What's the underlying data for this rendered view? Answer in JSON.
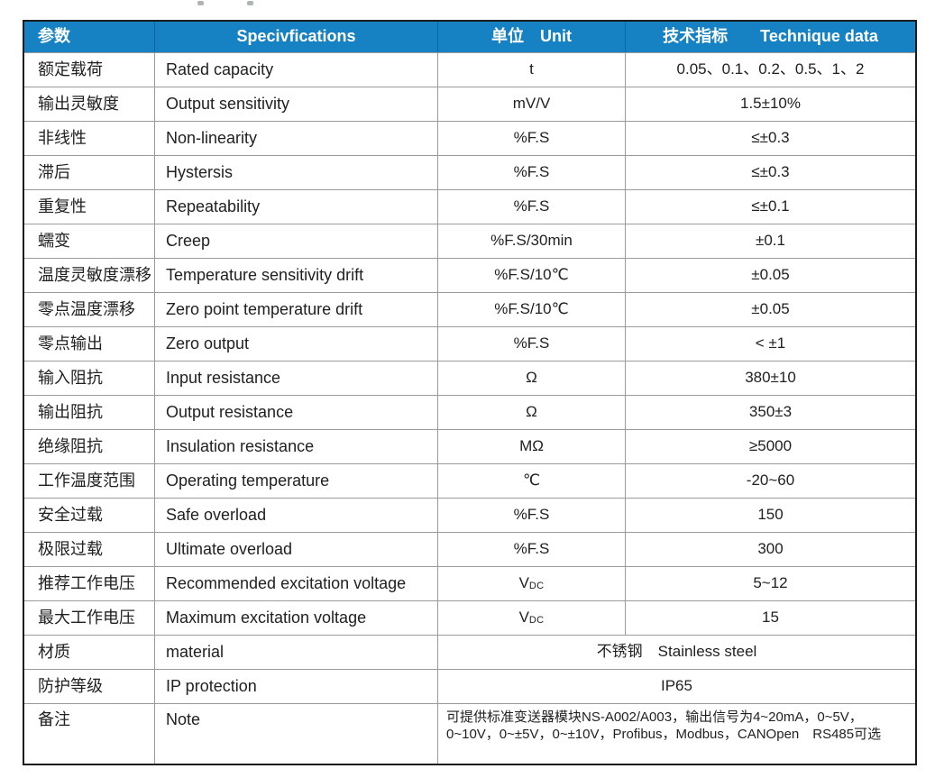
{
  "table": {
    "headers": {
      "param": "参数",
      "spec": "Specivfications",
      "unit": "单位　Unit",
      "data": "技术指标　　Technique data"
    },
    "rows": [
      {
        "zh": "额定载荷",
        "en": "Rated capacity",
        "unit": "t",
        "value": "0.05、0.1、0.2、0.5、1、2"
      },
      {
        "zh": "输出灵敏度",
        "en": "Output sensitivity",
        "unit": "mV/V",
        "value": "1.5±10%"
      },
      {
        "zh": "非线性",
        "en": "Non-linearity",
        "unit": "%F.S",
        "value": "≤±0.3"
      },
      {
        "zh": "滞后",
        "en": "Hystersis",
        "unit": "%F.S",
        "value": "≤±0.3"
      },
      {
        "zh": "重复性",
        "en": "Repeatability",
        "unit": "%F.S",
        "value": "≤±0.1"
      },
      {
        "zh": "蠕变",
        "en": "Creep",
        "unit": "%F.S/30min",
        "value": "±0.1"
      },
      {
        "zh": "温度灵敏度漂移",
        "en": "Temperature sensitivity drift",
        "unit": "%F.S/10℃",
        "value": "±0.05"
      },
      {
        "zh": "零点温度漂移",
        "en": "Zero point temperature drift",
        "unit": "%F.S/10℃",
        "value": "±0.05"
      },
      {
        "zh": "零点输出",
        "en": "Zero output",
        "unit": "%F.S",
        "value": "< ±1"
      },
      {
        "zh": "输入阻抗",
        "en": "Input resistance",
        "unit": "Ω",
        "value": "380±10"
      },
      {
        "zh": "输出阻抗",
        "en": "Output resistance",
        "unit": "Ω",
        "value": "350±3"
      },
      {
        "zh": "绝缘阻抗",
        "en": "Insulation resistance",
        "unit": "MΩ",
        "value": "≥5000"
      },
      {
        "zh": "工作温度范围",
        "en": "Operating temperature",
        "unit": "℃",
        "value": "-20~60"
      },
      {
        "zh": "安全过载",
        "en": "Safe overload",
        "unit": "%F.S",
        "value": "150"
      },
      {
        "zh": "极限过载",
        "en": "Ultimate overload",
        "unit": "%F.S",
        "value": "300"
      },
      {
        "zh": "推荐工作电压",
        "en": "Recommended excitation voltage",
        "unit": "VDC",
        "value": "5~12"
      },
      {
        "zh": "最大工作电压",
        "en": "Maximum excitation voltage",
        "unit": "VDC",
        "value": "15"
      },
      {
        "zh": "材质",
        "en": "material",
        "merged": true,
        "value": "不锈钢　Stainless steel"
      },
      {
        "zh": "防护等级",
        "en": "IP protection",
        "merged": true,
        "value": "IP65"
      },
      {
        "zh": "备注",
        "en": "Note",
        "merged": true,
        "note": true,
        "value": "可提供标准变送器模块NS-A002/A003，输出信号为4~20mA，0~5V，\n0~10V，0~±5V，0~±10V，Profibus，Modbus，CANOpen　RS485可选"
      }
    ]
  }
}
